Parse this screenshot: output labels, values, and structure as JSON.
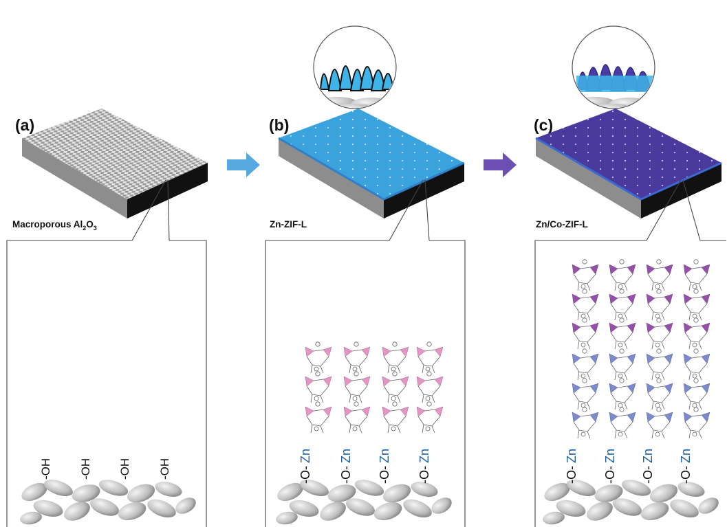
{
  "panels": [
    {
      "id": "a",
      "letter": "(a)",
      "caption": "Macroporous Al",
      "caption_sub1": "2",
      "caption_mid": "O",
      "caption_sub2": "3",
      "top_color": "#c8c8c8",
      "edge_color": "#808080"
    },
    {
      "id": "b",
      "letter": "(b)",
      "caption": "Zn-ZIF-L",
      "top_color": "#3aa3de",
      "edge_color": "#2f7fc9"
    },
    {
      "id": "c",
      "letter": "(c)",
      "caption": "Zn/Co-ZIF-L",
      "top_color": "#4b3a9e",
      "edge_color": "#3b6bd0"
    }
  ],
  "surface_groups": {
    "a": [
      "-OH",
      "-OH",
      "-OH",
      "-OH"
    ],
    "b": [
      {
        "o": "-O-",
        "zn": "Zn"
      },
      {
        "o": "-O-",
        "zn": "Zn"
      },
      {
        "o": "-O-",
        "zn": "Zn"
      },
      {
        "o": "-O-",
        "zn": "Zn"
      }
    ],
    "c": [
      {
        "o": "-O-",
        "zn": "Zn"
      },
      {
        "o": "-O-",
        "zn": "Zn"
      },
      {
        "o": "-O-",
        "zn": "Zn"
      },
      {
        "o": "-O-",
        "zn": "Zn"
      }
    ]
  },
  "colors": {
    "arrow_1": "#55a9de",
    "arrow_2": "#6b4fb3",
    "zn_text": "#1f5fa6",
    "framework_pink": "#e291c1",
    "framework_purple": "#8a3fa0",
    "framework_blue": "#6f7fc8",
    "zif_sheet_light": "#3fb4e8",
    "zif_sheet_dark": "#4a3ca8"
  },
  "icons": [
    "zif-lattice",
    "al2o3-particles",
    "magnifier-circle",
    "process-arrow"
  ]
}
